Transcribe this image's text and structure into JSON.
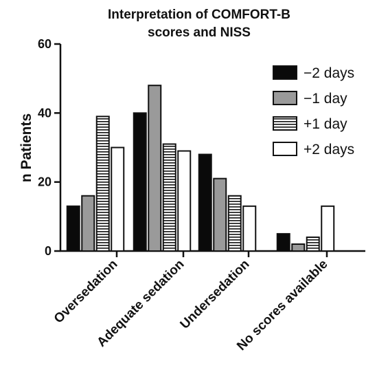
{
  "chart_data": {
    "type": "bar",
    "title": [
      "Interpretation of COMFORT-B",
      "scores and  NISS"
    ],
    "xlabel": "",
    "ylabel": "n Patients",
    "ylim": [
      0,
      60
    ],
    "yticks": [
      0,
      20,
      40,
      60
    ],
    "grid": false,
    "legend_position": "top-right",
    "categories": [
      "Oversedation",
      "Adequate sedation",
      "Undersedation",
      "No scores available"
    ],
    "series": [
      {
        "name": "−2 days",
        "fill": "solid-black",
        "color": "#0a0a0a",
        "values": [
          13,
          40,
          28,
          5
        ]
      },
      {
        "name": "−1 day",
        "fill": "solid-gray",
        "color": "#9a9a9a",
        "values": [
          16,
          48,
          21,
          2
        ]
      },
      {
        "name": "+1 day",
        "fill": "horizontal-stripes",
        "color": "#ffffff",
        "values": [
          39,
          31,
          16,
          4
        ]
      },
      {
        "name": "+2 days",
        "fill": "solid-white",
        "color": "#ffffff",
        "values": [
          30,
          29,
          13,
          13
        ]
      }
    ]
  }
}
